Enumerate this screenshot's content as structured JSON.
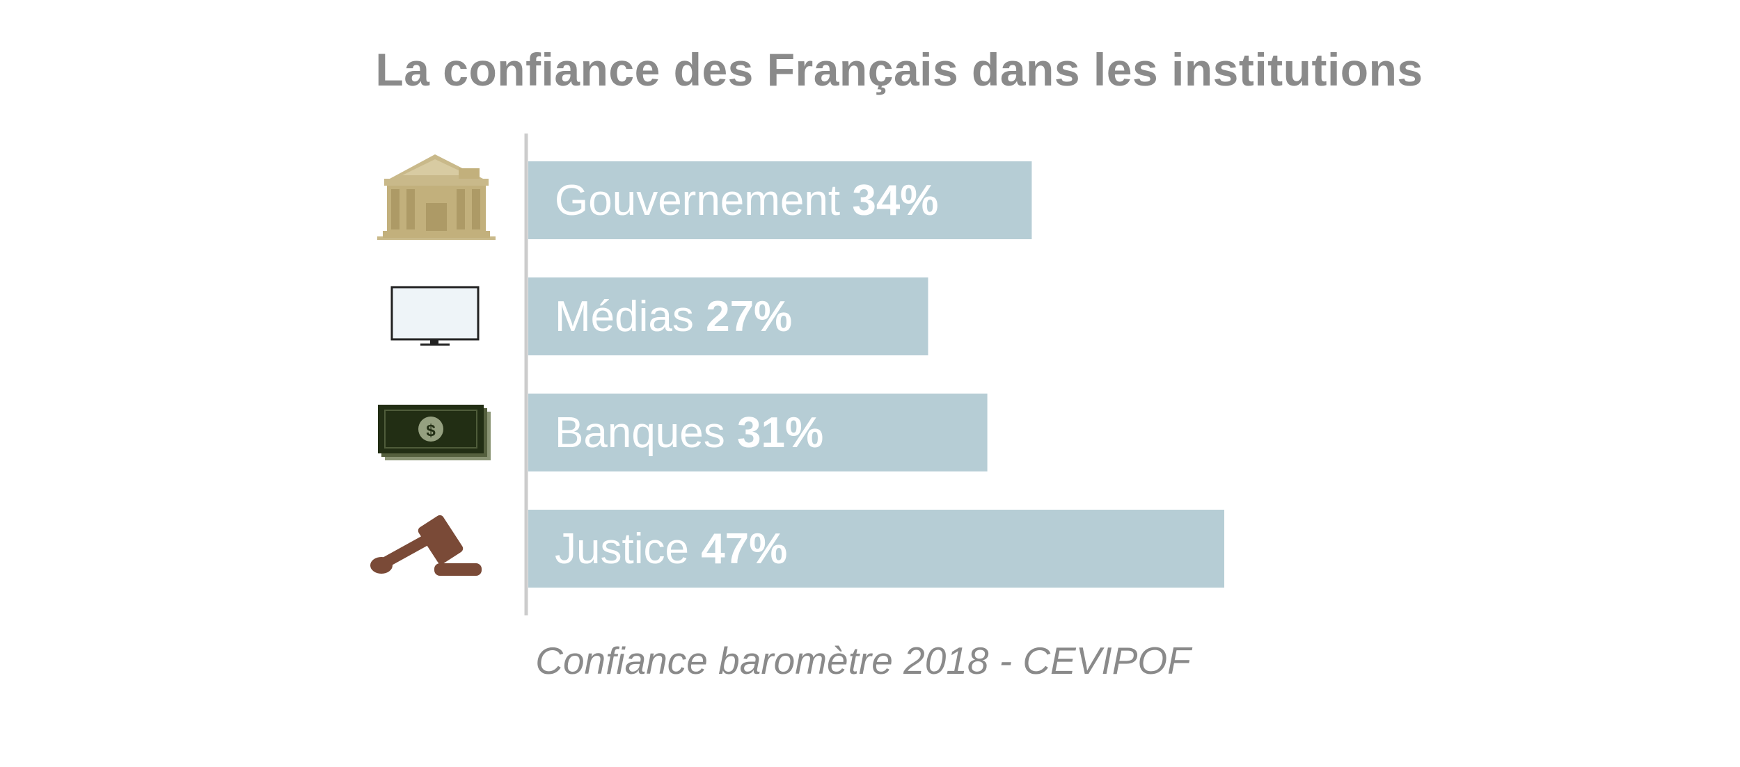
{
  "chart_data": {
    "type": "bar",
    "orientation": "horizontal",
    "title": "La confiance des Français dans les institutions",
    "categories": [
      "Gouvernement",
      "Médias",
      "Banques",
      "Justice"
    ],
    "values": [
      34,
      27,
      31,
      47
    ],
    "value_labels": [
      "34%",
      "27%",
      "31%",
      "47%"
    ],
    "icons": [
      "government-building-icon",
      "tv-screen-icon",
      "money-bill-icon",
      "gavel-icon"
    ],
    "source": "Confiance baromètre 2018 - CEVIPOF",
    "xlim": [
      0,
      47
    ],
    "grid": false,
    "legend": "none",
    "colors": {
      "bar": "#b6cdd5",
      "axis": "#cccccc",
      "title": "#8a8a8a",
      "bar_text": "#ffffff"
    }
  }
}
